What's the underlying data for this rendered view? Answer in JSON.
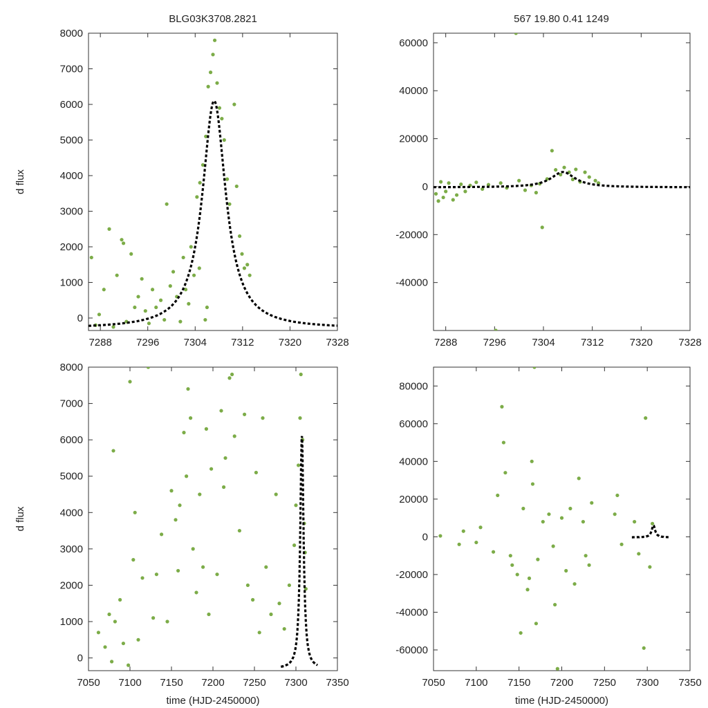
{
  "figure_title_left": "BLG03K3708.2821",
  "figure_title_right": "567   19.80   0.41   1249",
  "colors": {
    "data": "#7cac48",
    "model": "#000000",
    "axes": "#333333"
  },
  "chart_data": [
    {
      "type": "scatter",
      "panel": "top-left",
      "title": "BLG03K3708.2821",
      "xlabel": "",
      "ylabel": "d flux",
      "xlim": [
        7286,
        7328
      ],
      "ylim": [
        -350,
        8000
      ],
      "xticks": [
        7288,
        7296,
        7304,
        7312,
        7320,
        7328
      ],
      "yticks": [
        0,
        1000,
        2000,
        3000,
        4000,
        5000,
        6000,
        7000,
        8000
      ],
      "xtick_labels": [
        "7288",
        "7296",
        "7304",
        "7312",
        "7320",
        "7328"
      ],
      "ytick_labels": [
        "0",
        "1000",
        "2000",
        "3000",
        "4000",
        "5000",
        "6000",
        "7000",
        "8000"
      ],
      "model": {
        "name": "fit",
        "t0": 7307.2,
        "peak": 6100,
        "width": 2.4
      },
      "series": [
        {
          "name": "photometry",
          "color": "#7cac48",
          "points": [
            [
              7286.5,
              1700
            ],
            [
              7287.2,
              -200
            ],
            [
              7287.8,
              100
            ],
            [
              7288.6,
              800
            ],
            [
              7289.5,
              2500
            ],
            [
              7290.2,
              -250
            ],
            [
              7290.8,
              1200
            ],
            [
              7291.6,
              2200
            ],
            [
              7291.9,
              2100
            ],
            [
              7292.4,
              -100
            ],
            [
              7293.2,
              1800
            ],
            [
              7293.8,
              300
            ],
            [
              7294.4,
              600
            ],
            [
              7295.0,
              1100
            ],
            [
              7295.6,
              200
            ],
            [
              7296.2,
              -150
            ],
            [
              7296.8,
              800
            ],
            [
              7297.4,
              300
            ],
            [
              7298.2,
              500
            ],
            [
              7298.8,
              -50
            ],
            [
              7299.2,
              3200
            ],
            [
              7299.8,
              900
            ],
            [
              7300.3,
              1300
            ],
            [
              7300.9,
              600
            ],
            [
              7301.5,
              -100
            ],
            [
              7302.0,
              1700
            ],
            [
              7302.4,
              800
            ],
            [
              7302.9,
              400
            ],
            [
              7303.3,
              2000
            ],
            [
              7303.8,
              1200
            ],
            [
              7304.3,
              3400
            ],
            [
              7304.8,
              3800
            ],
            [
              7305.3,
              4300
            ],
            [
              7305.8,
              5100
            ],
            [
              7306.2,
              6500
            ],
            [
              7306.6,
              6900
            ],
            [
              7307.0,
              7400
            ],
            [
              7307.3,
              7800
            ],
            [
              7307.7,
              6600
            ],
            [
              7308.1,
              5900
            ],
            [
              7308.5,
              5600
            ],
            [
              7308.9,
              5000
            ],
            [
              7309.4,
              3900
            ],
            [
              7309.8,
              3200
            ],
            [
              7310.6,
              6000
            ],
            [
              7311.0,
              3700
            ],
            [
              7311.5,
              2300
            ],
            [
              7311.9,
              1800
            ],
            [
              7312.3,
              1400
            ],
            [
              7312.8,
              1500
            ],
            [
              7313.2,
              1200
            ],
            [
              7306.0,
              300
            ],
            [
              7305.7,
              -50
            ],
            [
              7304.7,
              1400
            ]
          ]
        }
      ]
    },
    {
      "type": "scatter",
      "panel": "top-right",
      "title": "567   19.80   0.41   1249",
      "xlabel": "",
      "ylabel": "",
      "xlim": [
        7286,
        7328
      ],
      "ylim": [
        -60000,
        64000
      ],
      "xticks": [
        7288,
        7296,
        7304,
        7312,
        7320,
        7328
      ],
      "yticks": [
        -40000,
        -20000,
        0,
        20000,
        40000,
        60000
      ],
      "xtick_labels": [
        "7288",
        "7296",
        "7304",
        "7312",
        "7320",
        "7328"
      ],
      "ytick_labels": [
        "-40000",
        "-20000",
        "0",
        "20000",
        "40000",
        "60000"
      ],
      "model": {
        "name": "fit",
        "t0": 7307.2,
        "peak": 6100,
        "width": 2.4
      },
      "series": [
        {
          "name": "photometry",
          "color": "#7cac48",
          "points": [
            [
              7286.4,
              -3000
            ],
            [
              7286.8,
              -6000
            ],
            [
              7287.2,
              2000
            ],
            [
              7287.6,
              -4500
            ],
            [
              7288.0,
              -2000
            ],
            [
              7288.5,
              1500
            ],
            [
              7289.2,
              -5500
            ],
            [
              7289.8,
              -3500
            ],
            [
              7290.5,
              1000
            ],
            [
              7291.2,
              -2000
            ],
            [
              7292.0,
              500
            ],
            [
              7293.0,
              1800
            ],
            [
              7294.0,
              -1000
            ],
            [
              7295.0,
              800
            ],
            [
              7296.2,
              -60000
            ],
            [
              7297.0,
              1500
            ],
            [
              7298.0,
              -500
            ],
            [
              7299.5,
              64000
            ],
            [
              7300.0,
              2500
            ],
            [
              7301.0,
              -1500
            ],
            [
              7302.0,
              500
            ],
            [
              7302.8,
              -2500
            ],
            [
              7303.4,
              1200
            ],
            [
              7303.8,
              -17000
            ],
            [
              7304.6,
              3200
            ],
            [
              7305.4,
              15000
            ],
            [
              7306.0,
              7000
            ],
            [
              7306.8,
              5000
            ],
            [
              7307.4,
              8000
            ],
            [
              7308.2,
              6000
            ],
            [
              7308.8,
              3000
            ],
            [
              7309.3,
              7200
            ],
            [
              7310.0,
              2000
            ],
            [
              7310.8,
              6000
            ],
            [
              7311.5,
              4000
            ],
            [
              7312.5,
              2500
            ],
            [
              7313.0,
              1500
            ]
          ]
        }
      ]
    },
    {
      "type": "scatter",
      "panel": "bottom-left",
      "title": "",
      "xlabel": "time (HJD-2450000)",
      "ylabel": "d flux",
      "xlim": [
        7050,
        7350
      ],
      "ylim": [
        -350,
        8000
      ],
      "xticks": [
        7050,
        7100,
        7150,
        7200,
        7250,
        7300,
        7350
      ],
      "yticks": [
        0,
        1000,
        2000,
        3000,
        4000,
        5000,
        6000,
        7000,
        8000
      ],
      "xtick_labels": [
        "7050",
        "7100",
        "7150",
        "7200",
        "7250",
        "7300",
        "7350"
      ],
      "ytick_labels": [
        "0",
        "1000",
        "2000",
        "3000",
        "4000",
        "5000",
        "6000",
        "7000",
        "8000"
      ],
      "model": {
        "name": "fit",
        "t0": 7307.2,
        "peak": 6100,
        "width": 2.4,
        "range": [
          7282,
          7326
        ]
      },
      "series": [
        {
          "name": "photometry",
          "color": "#7cac48",
          "points": [
            [
              7062,
              700
            ],
            [
              7070,
              300
            ],
            [
              7075,
              1200
            ],
            [
              7078,
              -100
            ],
            [
              7080,
              5700
            ],
            [
              7082,
              1000
            ],
            [
              7088,
              1600
            ],
            [
              7092,
              400
            ],
            [
              7098,
              -200
            ],
            [
              7100,
              7600
            ],
            [
              7104,
              2700
            ],
            [
              7106,
              4000
            ],
            [
              7110,
              500
            ],
            [
              7115,
              2200
            ],
            [
              7122,
              8000
            ],
            [
              7128,
              1100
            ],
            [
              7132,
              2300
            ],
            [
              7138,
              3400
            ],
            [
              7145,
              1000
            ],
            [
              7150,
              4600
            ],
            [
              7155,
              3800
            ],
            [
              7158,
              2400
            ],
            [
              7160,
              4200
            ],
            [
              7165,
              6200
            ],
            [
              7168,
              5000
            ],
            [
              7170,
              7400
            ],
            [
              7173,
              6600
            ],
            [
              7176,
              3000
            ],
            [
              7180,
              1800
            ],
            [
              7184,
              4500
            ],
            [
              7188,
              2500
            ],
            [
              7192,
              6300
            ],
            [
              7195,
              1200
            ],
            [
              7198,
              5200
            ],
            [
              7205,
              2300
            ],
            [
              7210,
              6800
            ],
            [
              7213,
              4700
            ],
            [
              7215,
              5500
            ],
            [
              7220,
              7700
            ],
            [
              7223,
              7800
            ],
            [
              7226,
              6100
            ],
            [
              7232,
              3500
            ],
            [
              7238,
              6700
            ],
            [
              7242,
              2000
            ],
            [
              7248,
              1600
            ],
            [
              7252,
              5100
            ],
            [
              7256,
              700
            ],
            [
              7260,
              6600
            ],
            [
              7264,
              2500
            ],
            [
              7270,
              1200
            ],
            [
              7276,
              4500
            ],
            [
              7280,
              1500
            ],
            [
              7286,
              800
            ],
            [
              7292,
              2000
            ],
            [
              7298,
              3100
            ],
            [
              7300,
              4200
            ],
            [
              7303,
              5300
            ],
            [
              7305,
              6600
            ],
            [
              7306,
              7800
            ],
            [
              7308,
              6000
            ],
            [
              7310,
              3700
            ],
            [
              7311,
              2900
            ],
            [
              7312,
              1900
            ]
          ]
        }
      ]
    },
    {
      "type": "scatter",
      "panel": "bottom-right",
      "title": "",
      "xlabel": "time (HJD-2450000)",
      "ylabel": "",
      "xlim": [
        7050,
        7350
      ],
      "ylim": [
        -71000,
        90000
      ],
      "xticks": [
        7050,
        7100,
        7150,
        7200,
        7250,
        7300,
        7350
      ],
      "yticks": [
        -60000,
        -40000,
        -20000,
        0,
        20000,
        40000,
        60000,
        80000
      ],
      "xtick_labels": [
        "7050",
        "7100",
        "7150",
        "7200",
        "7250",
        "7300",
        "7350"
      ],
      "ytick_labels": [
        "-60000",
        "-40000",
        "-20000",
        "0",
        "20000",
        "40000",
        "60000",
        "80000"
      ],
      "model": {
        "name": "fit",
        "t0": 7307.2,
        "peak": 6100,
        "width": 2.4,
        "range": [
          7282,
          7326
        ]
      },
      "series": [
        {
          "name": "photometry",
          "color": "#7cac48",
          "points": [
            [
              7058,
              500
            ],
            [
              7080,
              -4000
            ],
            [
              7085,
              3000
            ],
            [
              7100,
              -3000
            ],
            [
              7105,
              5000
            ],
            [
              7120,
              -8000
            ],
            [
              7125,
              22000
            ],
            [
              7130,
              69000
            ],
            [
              7132,
              50000
            ],
            [
              7134,
              34000
            ],
            [
              7140,
              -10000
            ],
            [
              7142,
              -15000
            ],
            [
              7148,
              -20000
            ],
            [
              7152,
              -51000
            ],
            [
              7155,
              15000
            ],
            [
              7160,
              -28000
            ],
            [
              7162,
              -22000
            ],
            [
              7165,
              40000
            ],
            [
              7166,
              28000
            ],
            [
              7168,
              90000
            ],
            [
              7170,
              -46000
            ],
            [
              7172,
              -12000
            ],
            [
              7178,
              8000
            ],
            [
              7185,
              12000
            ],
            [
              7190,
              -5000
            ],
            [
              7192,
              -36000
            ],
            [
              7195,
              -70000
            ],
            [
              7200,
              10000
            ],
            [
              7205,
              -18000
            ],
            [
              7210,
              15000
            ],
            [
              7215,
              -25000
            ],
            [
              7220,
              31000
            ],
            [
              7225,
              8000
            ],
            [
              7228,
              -10000
            ],
            [
              7232,
              -15000
            ],
            [
              7235,
              18000
            ],
            [
              7262,
              12000
            ],
            [
              7265,
              22000
            ],
            [
              7270,
              -4000
            ],
            [
              7285,
              8000
            ],
            [
              7290,
              -9000
            ],
            [
              7296,
              -59000
            ],
            [
              7298,
              63000
            ],
            [
              7303,
              -16000
            ],
            [
              7306,
              7000
            ]
          ]
        }
      ]
    }
  ]
}
